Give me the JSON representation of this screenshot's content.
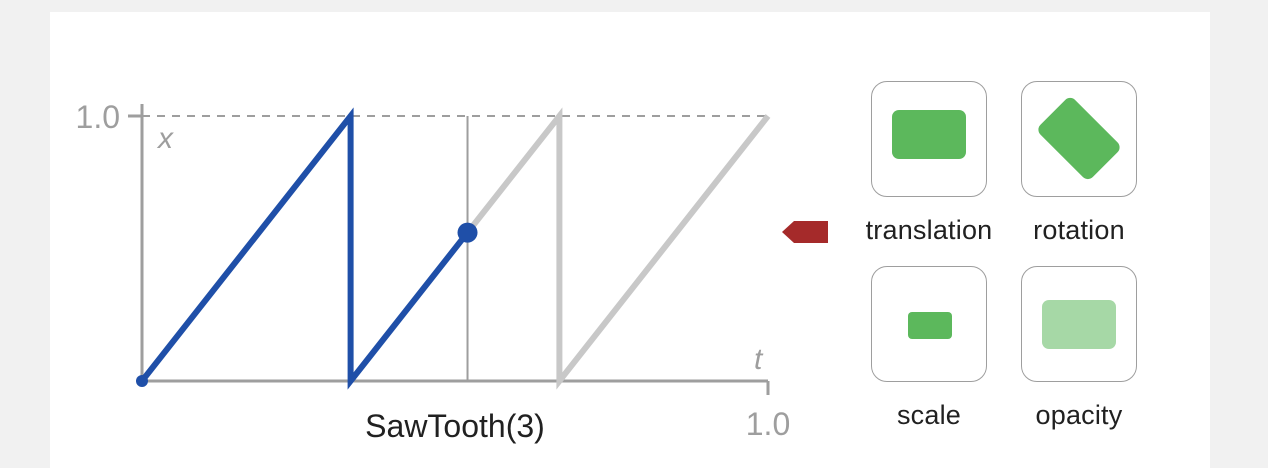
{
  "chart_data": {
    "type": "line",
    "function_name": "SawTooth(3)",
    "xlabel": "t",
    "ylabel": "x",
    "xlim": [
      0,
      1.0
    ],
    "ylim": [
      0,
      1.0
    ],
    "x_tick_label": "1.0",
    "y_tick_label": "1.0",
    "teeth": 3,
    "current_t": 0.52,
    "current_x": 0.56,
    "series": [
      {
        "name": "completed",
        "color": "#1f4fa8",
        "points": [
          [
            0,
            0
          ],
          [
            0.3333,
            1.0
          ],
          [
            0.3333,
            0
          ],
          [
            0.52,
            0.56
          ]
        ]
      },
      {
        "name": "remaining",
        "color": "#c8c8c8",
        "points": [
          [
            0.52,
            0.56
          ],
          [
            0.6667,
            1.0
          ],
          [
            0.6667,
            0
          ],
          [
            1.0,
            1.0
          ]
        ]
      }
    ]
  },
  "animations": [
    {
      "id": "translation",
      "label": "translation"
    },
    {
      "id": "rotation",
      "label": "rotation"
    },
    {
      "id": "scale",
      "label": "scale"
    },
    {
      "id": "opacity",
      "label": "opacity"
    }
  ],
  "colors": {
    "accent_blue": "#1f4fa8",
    "ghost_gray": "#c8c8c8",
    "axis_gray": "#9e9e9e",
    "shape_green": "#5cb85c",
    "indicator_red": "#a52a2a"
  }
}
